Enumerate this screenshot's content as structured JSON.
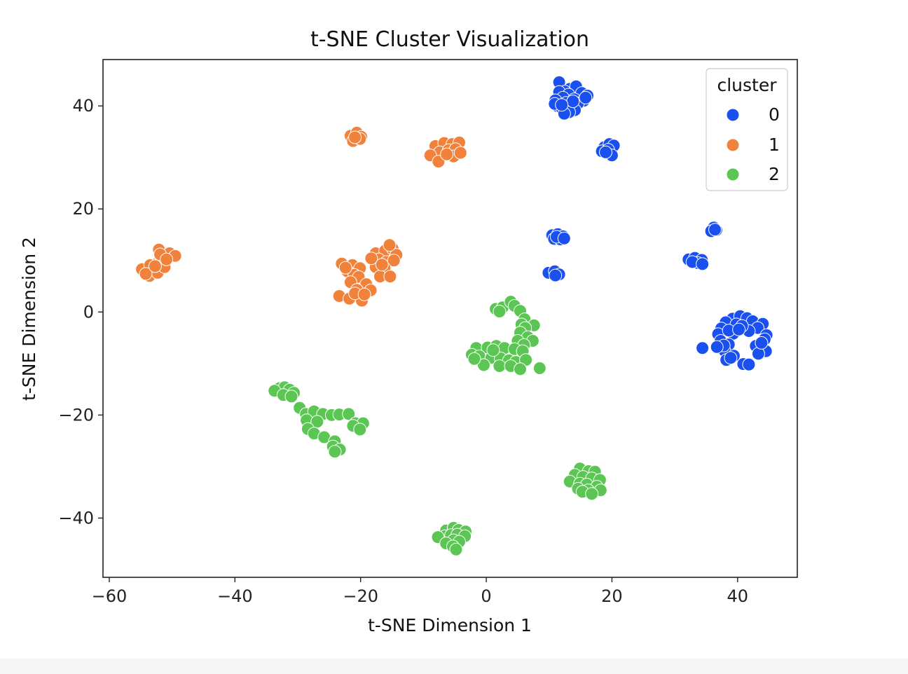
{
  "chart_data": {
    "type": "scatter",
    "title": "t-SNE Cluster Visualization",
    "xlabel": "t-SNE Dimension 1",
    "ylabel": "t-SNE Dimension 2",
    "xlim": [
      -61,
      49.5
    ],
    "ylim": [
      -51.5,
      49
    ],
    "xticks": [
      -60,
      -40,
      -20,
      0,
      20,
      40
    ],
    "yticks": [
      -40,
      -20,
      0,
      20,
      40
    ],
    "xtick_labels": [
      "−60",
      "−40",
      "−20",
      "0",
      "20",
      "40"
    ],
    "ytick_labels": [
      "−40",
      "−20",
      "0",
      "20",
      "40"
    ],
    "grid": false,
    "legend": {
      "title": "cluster",
      "position": "top-right"
    },
    "series": [
      {
        "name": "0",
        "color": "#1a4ff0",
        "points": [
          [
            11.6,
            44.6
          ],
          [
            13.3,
            43.3
          ],
          [
            14.3,
            43.8
          ],
          [
            12.5,
            42.8
          ],
          [
            11.6,
            42.7
          ],
          [
            15.2,
            42.5
          ],
          [
            16.1,
            42.0
          ],
          [
            13.1,
            42.2
          ],
          [
            12.2,
            41.6
          ],
          [
            14.0,
            41.3
          ],
          [
            11.0,
            41.1
          ],
          [
            15.5,
            41.0
          ],
          [
            12.7,
            40.6
          ],
          [
            14.6,
            40.5
          ],
          [
            11.3,
            40.0
          ],
          [
            13.4,
            39.8
          ],
          [
            12.1,
            39.4
          ],
          [
            14.1,
            39.2
          ],
          [
            13.2,
            38.8
          ],
          [
            12.4,
            38.5
          ],
          [
            10.9,
            40.4
          ],
          [
            15.8,
            41.6
          ],
          [
            13.8,
            40.9
          ],
          [
            12.0,
            40.2
          ],
          [
            18.8,
            32.0
          ],
          [
            19.6,
            32.6
          ],
          [
            20.3,
            32.3
          ],
          [
            18.4,
            31.2
          ],
          [
            19.4,
            31.5
          ],
          [
            20.0,
            30.4
          ],
          [
            19.0,
            31.0
          ],
          [
            10.5,
            14.9
          ],
          [
            11.4,
            15.1
          ],
          [
            12.2,
            14.7
          ],
          [
            10.8,
            14.2
          ],
          [
            11.8,
            14.1
          ],
          [
            11.2,
            14.6
          ],
          [
            12.4,
            14.3
          ],
          [
            9.9,
            7.6
          ],
          [
            10.9,
            7.9
          ],
          [
            11.6,
            7.3
          ],
          [
            11.0,
            7.1
          ],
          [
            36.2,
            16.4
          ],
          [
            36.6,
            15.9
          ],
          [
            35.8,
            15.7
          ],
          [
            36.4,
            16.0
          ],
          [
            32.2,
            10.2
          ],
          [
            33.2,
            10.5
          ],
          [
            34.3,
            10.1
          ],
          [
            33.7,
            9.5
          ],
          [
            32.8,
            9.7
          ],
          [
            34.4,
            9.3
          ],
          [
            39.2,
            -1.3
          ],
          [
            40.4,
            -0.8
          ],
          [
            41.5,
            -1.2
          ],
          [
            42.4,
            -1.8
          ],
          [
            38.1,
            -2.0
          ],
          [
            44.0,
            -2.3
          ],
          [
            37.4,
            -3.2
          ],
          [
            43.2,
            -3.1
          ],
          [
            36.9,
            -4.3
          ],
          [
            44.6,
            -4.5
          ],
          [
            39.3,
            -4.2
          ],
          [
            41.8,
            -3.7
          ],
          [
            37.3,
            -5.6
          ],
          [
            44.3,
            -5.3
          ],
          [
            38.6,
            -6.3
          ],
          [
            42.9,
            -6.6
          ],
          [
            37.9,
            -7.5
          ],
          [
            44.5,
            -7.6
          ],
          [
            39.4,
            -8.5
          ],
          [
            43.3,
            -8.1
          ],
          [
            38.2,
            -9.3
          ],
          [
            40.9,
            -10.1
          ],
          [
            41.8,
            -10.2
          ],
          [
            34.4,
            -7.0
          ],
          [
            39.8,
            -2.4
          ],
          [
            40.7,
            -2.7
          ],
          [
            38.6,
            -3.6
          ],
          [
            37.8,
            -6.5
          ],
          [
            36.7,
            -6.8
          ],
          [
            43.8,
            -6.0
          ],
          [
            40.2,
            -3.4
          ],
          [
            38.9,
            -8.9
          ]
        ]
      },
      {
        "name": "1",
        "color": "#f0823c",
        "points": [
          [
            -21.6,
            34.2
          ],
          [
            -20.6,
            34.8
          ],
          [
            -19.9,
            34.0
          ],
          [
            -21.2,
            33.2
          ],
          [
            -20.1,
            33.6
          ],
          [
            -20.9,
            33.9
          ],
          [
            -8.1,
            32.2
          ],
          [
            -6.7,
            32.8
          ],
          [
            -5.4,
            32.6
          ],
          [
            -4.3,
            32.9
          ],
          [
            -7.4,
            31.0
          ],
          [
            -6.0,
            31.4
          ],
          [
            -4.9,
            31.6
          ],
          [
            -8.9,
            30.4
          ],
          [
            -5.2,
            30.2
          ],
          [
            -7.6,
            29.2
          ],
          [
            -4.1,
            30.9
          ],
          [
            -6.3,
            30.6
          ],
          [
            -54.8,
            8.3
          ],
          [
            -53.5,
            9.1
          ],
          [
            -52.2,
            9.6
          ],
          [
            -51.8,
            10.8
          ],
          [
            -52.1,
            12.1
          ],
          [
            -50.4,
            11.4
          ],
          [
            -49.5,
            10.9
          ],
          [
            -53.6,
            7.0
          ],
          [
            -52.3,
            7.6
          ],
          [
            -51.2,
            8.7
          ],
          [
            -54.2,
            7.4
          ],
          [
            -51.9,
            11.2
          ],
          [
            -50.9,
            10.2
          ],
          [
            -52.7,
            8.9
          ],
          [
            -23.0,
            9.4
          ],
          [
            -21.3,
            9.1
          ],
          [
            -20.1,
            8.5
          ],
          [
            -22.1,
            7.9
          ],
          [
            -21.0,
            7.2
          ],
          [
            -20.3,
            6.8
          ],
          [
            -19.1,
            5.4
          ],
          [
            -21.6,
            5.8
          ],
          [
            -20.6,
            4.3
          ],
          [
            -18.4,
            4.2
          ],
          [
            -23.4,
            3.1
          ],
          [
            -21.8,
            2.6
          ],
          [
            -19.8,
            2.2
          ],
          [
            -20.9,
            3.6
          ],
          [
            -19.4,
            3.4
          ],
          [
            -22.4,
            8.6
          ],
          [
            -17.6,
            11.4
          ],
          [
            -16.1,
            11.9
          ],
          [
            -14.9,
            12.3
          ],
          [
            -14.3,
            11.1
          ],
          [
            -17.1,
            10.2
          ],
          [
            -15.9,
            9.7
          ],
          [
            -14.7,
            10.0
          ],
          [
            -17.6,
            8.7
          ],
          [
            -16.2,
            8.5
          ],
          [
            -18.3,
            10.4
          ],
          [
            -16.9,
            6.9
          ],
          [
            -15.3,
            6.9
          ],
          [
            -15.4,
            13.0
          ],
          [
            -16.6,
            9.2
          ]
        ]
      },
      {
        "name": "2",
        "color": "#5cc654",
        "points": [
          [
            1.5,
            0.6
          ],
          [
            2.6,
            0.9
          ],
          [
            3.9,
            2.0
          ],
          [
            4.5,
            1.2
          ],
          [
            5.4,
            0.2
          ],
          [
            2.1,
            0.1
          ],
          [
            6.1,
            -1.4
          ],
          [
            5.6,
            -2.4
          ],
          [
            7.6,
            -2.6
          ],
          [
            6.2,
            -3.1
          ],
          [
            5.4,
            -4.0
          ],
          [
            6.6,
            -4.9
          ],
          [
            5.0,
            -5.6
          ],
          [
            7.4,
            -5.6
          ],
          [
            6.0,
            -6.4
          ],
          [
            -1.6,
            -7.0
          ],
          [
            0.2,
            -6.9
          ],
          [
            1.6,
            -6.6
          ],
          [
            2.9,
            -7.0
          ],
          [
            4.5,
            -7.2
          ],
          [
            5.8,
            -7.6
          ],
          [
            -2.3,
            -8.3
          ],
          [
            -1.1,
            -8.6
          ],
          [
            0.8,
            -8.9
          ],
          [
            2.3,
            -9.0
          ],
          [
            3.6,
            -9.4
          ],
          [
            4.7,
            -9.7
          ],
          [
            6.3,
            -9.3
          ],
          [
            -0.4,
            -10.3
          ],
          [
            2.1,
            -10.5
          ],
          [
            3.9,
            -10.5
          ],
          [
            5.4,
            -11.1
          ],
          [
            8.5,
            -10.9
          ],
          [
            -1.9,
            -9.1
          ],
          [
            1.1,
            -7.4
          ],
          [
            -32.9,
            -14.8
          ],
          [
            -32.1,
            -14.6
          ],
          [
            -31.3,
            -15.1
          ],
          [
            -30.6,
            -15.7
          ],
          [
            -33.7,
            -15.3
          ],
          [
            -32.3,
            -16.1
          ],
          [
            -31.0,
            -16.4
          ],
          [
            -29.7,
            -18.6
          ],
          [
            -28.7,
            -19.8
          ],
          [
            -27.4,
            -19.3
          ],
          [
            -26.0,
            -19.8
          ],
          [
            -24.6,
            -20.0
          ],
          [
            -23.4,
            -19.9
          ],
          [
            -21.9,
            -19.8
          ],
          [
            -28.6,
            -21.0
          ],
          [
            -26.9,
            -21.3
          ],
          [
            -20.8,
            -21.6
          ],
          [
            -19.6,
            -21.6
          ],
          [
            -21.2,
            -22.1
          ],
          [
            -20.1,
            -22.8
          ],
          [
            -28.4,
            -22.7
          ],
          [
            -27.4,
            -23.6
          ],
          [
            -25.8,
            -24.3
          ],
          [
            -24.1,
            -25.1
          ],
          [
            -24.4,
            -26.1
          ],
          [
            -23.3,
            -26.7
          ],
          [
            -24.1,
            -27.1
          ],
          [
            14.9,
            -30.4
          ],
          [
            16.3,
            -30.9
          ],
          [
            17.3,
            -31.0
          ],
          [
            14.1,
            -31.6
          ],
          [
            15.4,
            -32.0
          ],
          [
            16.8,
            -32.3
          ],
          [
            18.1,
            -32.6
          ],
          [
            13.3,
            -32.9
          ],
          [
            14.9,
            -33.3
          ],
          [
            16.0,
            -33.5
          ],
          [
            17.6,
            -33.9
          ],
          [
            14.6,
            -34.3
          ],
          [
            16.2,
            -34.6
          ],
          [
            18.2,
            -34.6
          ],
          [
            15.3,
            -34.9
          ],
          [
            16.8,
            -35.3
          ],
          [
            -6.4,
            -42.4
          ],
          [
            -5.2,
            -41.9
          ],
          [
            -4.4,
            -42.3
          ],
          [
            -3.3,
            -42.6
          ],
          [
            -6.6,
            -43.5
          ],
          [
            -5.6,
            -43.3
          ],
          [
            -4.6,
            -43.2
          ],
          [
            -3.4,
            -43.5
          ],
          [
            -7.7,
            -43.7
          ],
          [
            -5.2,
            -44.3
          ],
          [
            -6.4,
            -44.9
          ],
          [
            -4.3,
            -44.6
          ],
          [
            -5.3,
            -45.5
          ],
          [
            -4.8,
            -46.1
          ]
        ]
      }
    ]
  }
}
